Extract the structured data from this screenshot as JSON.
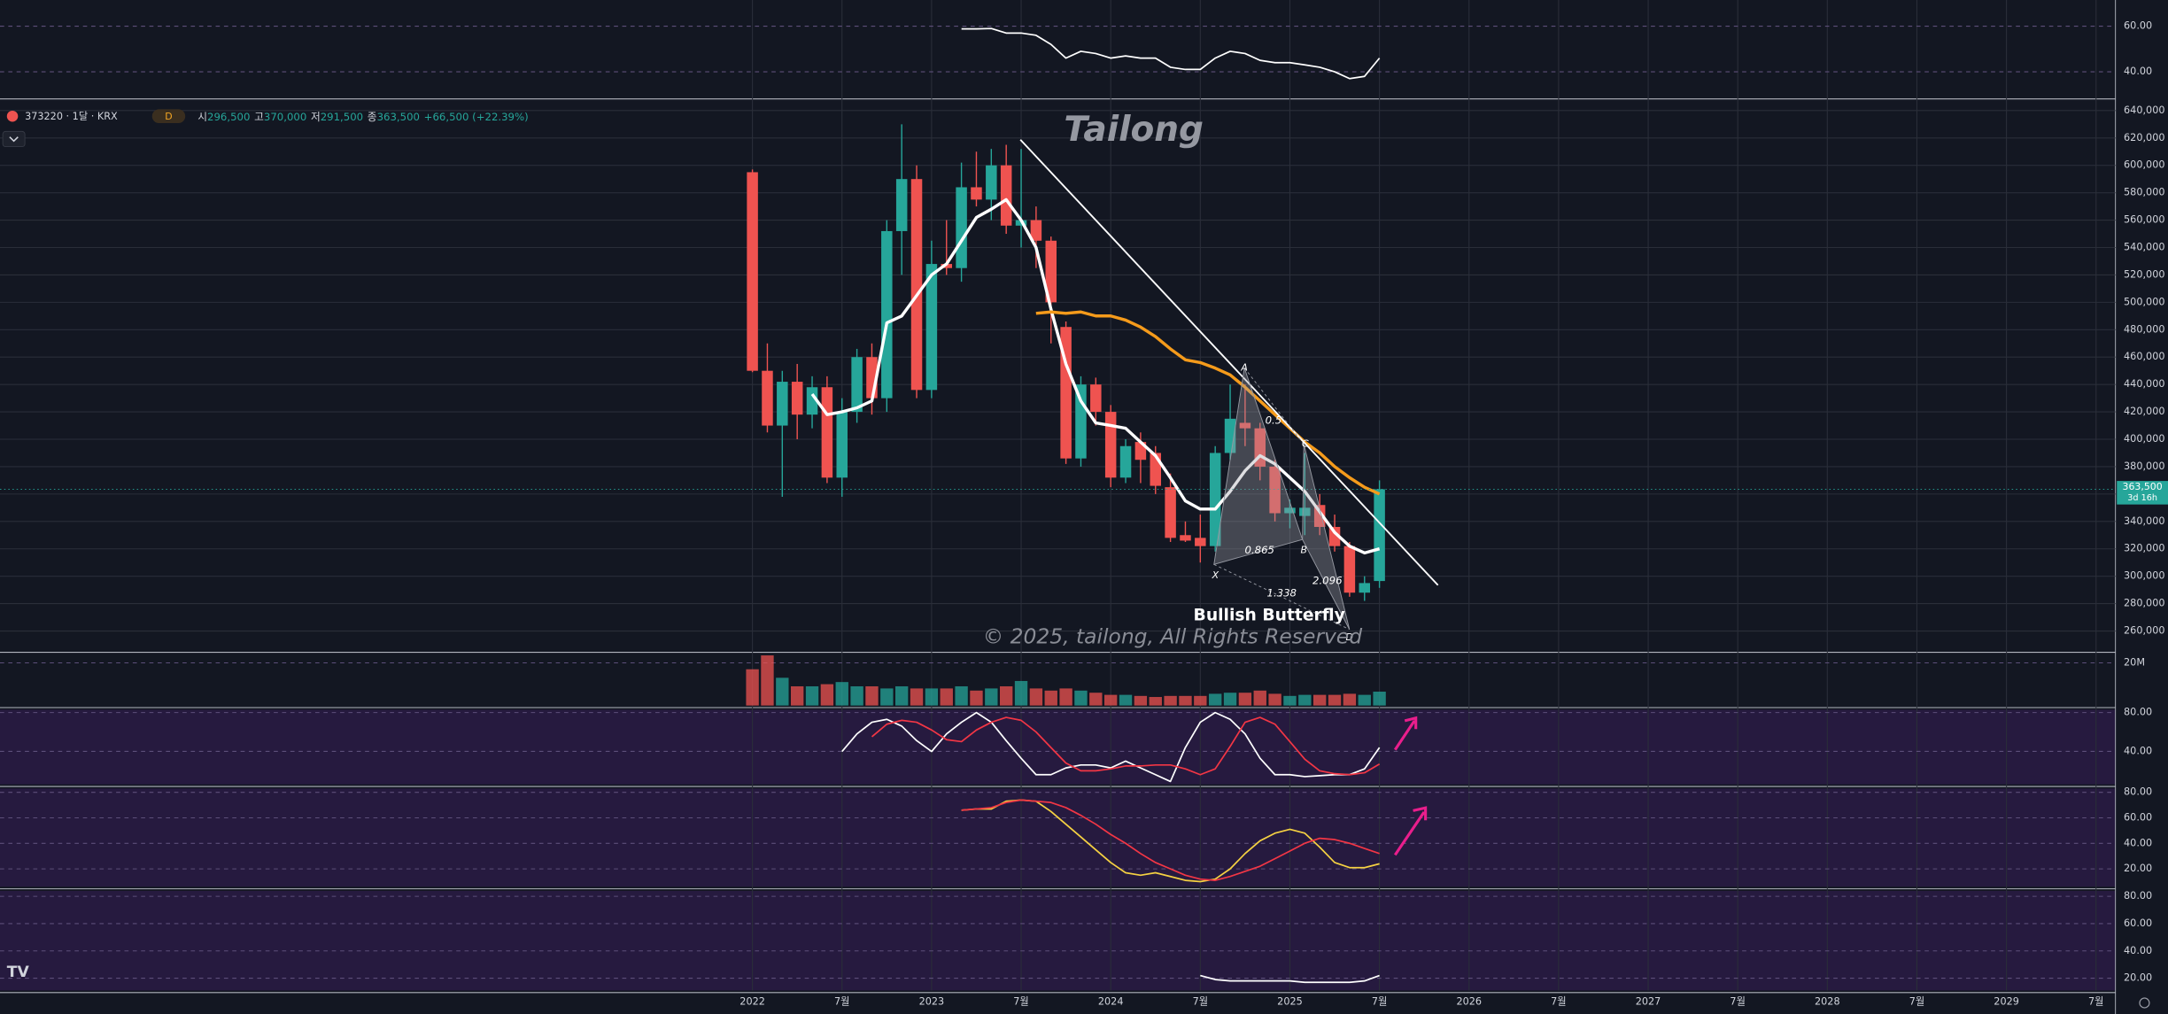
{
  "header": {
    "symbol": "373220 · 1달 · KRX",
    "interval_badge": "D",
    "o_label": "시",
    "o": "296,500",
    "h_label": "고",
    "h": "370,000",
    "l_label": "저",
    "l": "291,500",
    "c_label": "종",
    "c": "363,500",
    "change": "+66,500 (+22.39%)",
    "countdown": "3d 16h"
  },
  "chart_data": [
    {
      "type": "line",
      "ylim": [
        29,
        71.5
      ],
      "yticks": [
        {
          "value": 60,
          "label": "60.00"
        },
        {
          "value": 40,
          "label": "40.00"
        }
      ],
      "series": [
        {
          "color": "#ffffff",
          "values": [
            null,
            null,
            null,
            null,
            null,
            null,
            null,
            null,
            null,
            null,
            null,
            null,
            null,
            null,
            58.8,
            58.8,
            59,
            57,
            57,
            56,
            52,
            46,
            49,
            48,
            46,
            47,
            46,
            46,
            42,
            41,
            41,
            46,
            49,
            48,
            45,
            44,
            44,
            43,
            42,
            40,
            37,
            38,
            46
          ]
        }
      ]
    },
    {
      "type": "candlestick",
      "xlim": [
        -50.4,
        91.3
      ],
      "ylim": [
        246000,
        647000
      ],
      "xticks": [
        {
          "value": 0,
          "label": "2022"
        },
        {
          "value": 6,
          "label": "7월"
        },
        {
          "value": 12,
          "label": "2023"
        },
        {
          "value": 18,
          "label": "7월"
        },
        {
          "value": 24,
          "label": "2024"
        },
        {
          "value": 30,
          "label": "7월"
        },
        {
          "value": 36,
          "label": "2025"
        },
        {
          "value": 42,
          "label": "7월"
        },
        {
          "value": 48,
          "label": "2026"
        },
        {
          "value": 54,
          "label": "7월"
        },
        {
          "value": 60,
          "label": "2027"
        },
        {
          "value": 66,
          "label": "7월"
        },
        {
          "value": 72,
          "label": "2028"
        },
        {
          "value": 78,
          "label": "7월"
        },
        {
          "value": 84,
          "label": "2029"
        },
        {
          "value": 90,
          "label": "7월"
        }
      ],
      "yticks": [
        {
          "value": 260000,
          "label": "260,000"
        },
        {
          "value": 280000,
          "label": "280,000"
        },
        {
          "value": 300000,
          "label": "300,000"
        },
        {
          "value": 320000,
          "label": "320,000"
        },
        {
          "value": 340000,
          "label": "340,000"
        },
        {
          "value": 360000,
          "label": "360,000"
        },
        {
          "value": 380000,
          "label": "380,000"
        },
        {
          "value": 400000,
          "label": "400,000"
        },
        {
          "value": 420000,
          "label": "420,000"
        },
        {
          "value": 440000,
          "label": "440,000"
        },
        {
          "value": 460000,
          "label": "460,000"
        },
        {
          "value": 480000,
          "label": "480,000"
        },
        {
          "value": 500000,
          "label": "500,000"
        },
        {
          "value": 520000,
          "label": "520,000"
        },
        {
          "value": 540000,
          "label": "540,000"
        },
        {
          "value": 560000,
          "label": "560,000"
        },
        {
          "value": 580000,
          "label": "580,000"
        },
        {
          "value": 600000,
          "label": "600,000"
        },
        {
          "value": 620000,
          "label": "620,000"
        },
        {
          "value": 640000,
          "label": "640,000"
        }
      ],
      "up_color": "#26a69a",
      "down_color": "#ef5350",
      "open": [
        595000,
        450000,
        410000,
        442000,
        418000,
        438000,
        372000,
        420000,
        460000,
        430000,
        552000,
        590000,
        436000,
        528000,
        525000,
        584000,
        575000,
        600000,
        556000,
        560000,
        545000,
        482000,
        386000,
        440000,
        420000,
        372000,
        398000,
        390000,
        365000,
        330000,
        328000,
        322000,
        390000,
        412000,
        408000,
        380000,
        346000,
        344000,
        352000,
        336000,
        322000,
        288000,
        296500
      ],
      "high": [
        597000,
        470000,
        450000,
        455000,
        446000,
        446000,
        430000,
        466000,
        470000,
        560000,
        630000,
        600000,
        545000,
        560000,
        602000,
        610000,
        612000,
        615000,
        612000,
        570000,
        548000,
        486000,
        446000,
        445000,
        425000,
        400000,
        405000,
        395000,
        375000,
        340000,
        345000,
        395000,
        440000,
        440000,
        412000,
        385000,
        356000,
        390000,
        360000,
        345000,
        325000,
        300000,
        370000
      ],
      "low": [
        449000,
        405000,
        358000,
        400000,
        408000,
        368000,
        358000,
        412000,
        418000,
        420000,
        520000,
        430000,
        430000,
        520000,
        515000,
        570000,
        560000,
        550000,
        540000,
        525000,
        470000,
        382000,
        380000,
        410000,
        365000,
        368000,
        368000,
        360000,
        325000,
        325000,
        310000,
        318000,
        385000,
        395000,
        370000,
        340000,
        335000,
        330000,
        330000,
        318000,
        285000,
        282000,
        291500
      ],
      "close": [
        450000,
        410000,
        442000,
        418000,
        438000,
        372000,
        420000,
        460000,
        430000,
        552000,
        590000,
        436000,
        528000,
        525000,
        584000,
        575000,
        600000,
        556000,
        560000,
        545000,
        500000,
        386000,
        440000,
        420000,
        372000,
        395000,
        385000,
        366000,
        328000,
        326000,
        322000,
        390000,
        415000,
        408000,
        380000,
        346000,
        350000,
        350000,
        336000,
        322000,
        288000,
        295000,
        363500
      ],
      "series": [
        {
          "color": "#ffffff",
          "values": [
            null,
            null,
            null,
            null,
            433000,
            418000,
            420000,
            423000,
            428000,
            485000,
            490000,
            505000,
            520000,
            528000,
            545000,
            562000,
            568000,
            575000,
            560000,
            540000,
            495000,
            455000,
            428000,
            412000,
            410000,
            408000,
            398000,
            388000,
            372000,
            355000,
            349000,
            349000,
            362000,
            377000,
            388000,
            382000,
            372000,
            362000,
            347000,
            332000,
            322000,
            317000,
            320000
          ]
        },
        {
          "color": "#f59b1b",
          "values": [
            null,
            null,
            null,
            null,
            null,
            null,
            null,
            null,
            null,
            null,
            null,
            null,
            null,
            null,
            null,
            null,
            null,
            null,
            null,
            492000,
            493000,
            492000,
            493000,
            490000,
            490000,
            487000,
            482000,
            475000,
            466000,
            458000,
            456000,
            452000,
            447000,
            438000,
            428000,
            418000,
            408000,
            398000,
            390000,
            380000,
            372000,
            365000,
            360000
          ]
        }
      ],
      "watermark": "Tailong",
      "pattern_name": "Bullish Butterfly",
      "copyright": "© 2025, tailong, All Rights Reserved",
      "pattern_points": [
        "X",
        "A",
        "B",
        "C",
        "D"
      ],
      "pattern_ratios": [
        "0.865",
        "1.338",
        "2.096",
        "0.5"
      ]
    },
    {
      "type": "bar",
      "ylim": [
        0,
        24000000
      ],
      "yticks": [
        {
          "value": 20000000,
          "label": "20M"
        }
      ],
      "values": [
        17000000,
        23500000,
        13000000,
        9000000,
        9000000,
        10000000,
        11000000,
        9000000,
        9000000,
        8000000,
        9000000,
        8000000,
        8000000,
        8000000,
        9000000,
        7000000,
        8000000,
        9000000,
        11500000,
        8000000,
        7000000,
        8000000,
        7000000,
        6000000,
        5000000,
        5000000,
        4500000,
        4000000,
        4500000,
        4500000,
        4500000,
        5500000,
        6000000,
        6000000,
        7000000,
        5500000,
        4500000,
        5000000,
        5000000,
        5000000,
        5500000,
        5000000,
        6500000
      ]
    },
    {
      "type": "line",
      "ylim": [
        6,
        83
      ],
      "yticks": [
        {
          "value": 80,
          "label": "80.00"
        },
        {
          "value": 40,
          "label": "40.00"
        }
      ],
      "series": [
        {
          "color": "#ffffff",
          "values": [
            null,
            null,
            null,
            null,
            null,
            null,
            40,
            58,
            70,
            73,
            66,
            51,
            40,
            58,
            70,
            80,
            70,
            51,
            33,
            16,
            16,
            23,
            26,
            26,
            23,
            30,
            23,
            16,
            9,
            44,
            70,
            80,
            73,
            58,
            33,
            16,
            16,
            14,
            15,
            16,
            16,
            22,
            44
          ]
        },
        {
          "color": "#f23645",
          "values": [
            null,
            null,
            null,
            null,
            null,
            null,
            null,
            null,
            55,
            68,
            72,
            70,
            62,
            52,
            50,
            62,
            70,
            75,
            72,
            60,
            44,
            28,
            20,
            20,
            22,
            25,
            25,
            26,
            26,
            22,
            16,
            22,
            45,
            70,
            75,
            68,
            50,
            32,
            20,
            17,
            16,
            18,
            27
          ]
        }
      ]
    },
    {
      "type": "line",
      "ylim": [
        6,
        83
      ],
      "yticks": [
        {
          "value": 80,
          "label": "80.00"
        },
        {
          "value": 60,
          "label": "60.00"
        },
        {
          "value": 40,
          "label": "40.00"
        },
        {
          "value": 20,
          "label": "20.00"
        }
      ],
      "series": [
        {
          "color": "#f5d142",
          "values": [
            null,
            null,
            null,
            null,
            null,
            null,
            null,
            null,
            null,
            null,
            null,
            null,
            null,
            null,
            66,
            67,
            67,
            73,
            74,
            73,
            65,
            55,
            45,
            35,
            25,
            17,
            15,
            17,
            14,
            11,
            10,
            12,
            20,
            32,
            42,
            48,
            51,
            48,
            37,
            25,
            21,
            21,
            24
          ]
        },
        {
          "color": "#f23645",
          "values": [
            null,
            null,
            null,
            null,
            null,
            null,
            null,
            null,
            null,
            null,
            null,
            null,
            null,
            null,
            66,
            67,
            68,
            72,
            74,
            73,
            72,
            68,
            62,
            55,
            47,
            40,
            32,
            25,
            20,
            15,
            12,
            11,
            14,
            18,
            22,
            28,
            34,
            40,
            44,
            43,
            40,
            36,
            32
          ]
        }
      ]
    },
    {
      "type": "line",
      "ylim": [
        11,
        84
      ],
      "yticks": [
        {
          "value": 80,
          "label": "80.00"
        },
        {
          "value": 60,
          "label": "60.00"
        },
        {
          "value": 40,
          "label": "40.00"
        },
        {
          "value": 20,
          "label": "20.00"
        }
      ],
      "series": [
        {
          "color": "#ffffff",
          "values": [
            null,
            null,
            null,
            null,
            null,
            null,
            null,
            null,
            null,
            null,
            null,
            null,
            null,
            null,
            null,
            null,
            null,
            null,
            null,
            null,
            null,
            null,
            null,
            null,
            null,
            null,
            null,
            null,
            null,
            null,
            22,
            19,
            18,
            18,
            18,
            18,
            18,
            17,
            17,
            17,
            17,
            18,
            22
          ]
        }
      ]
    }
  ]
}
